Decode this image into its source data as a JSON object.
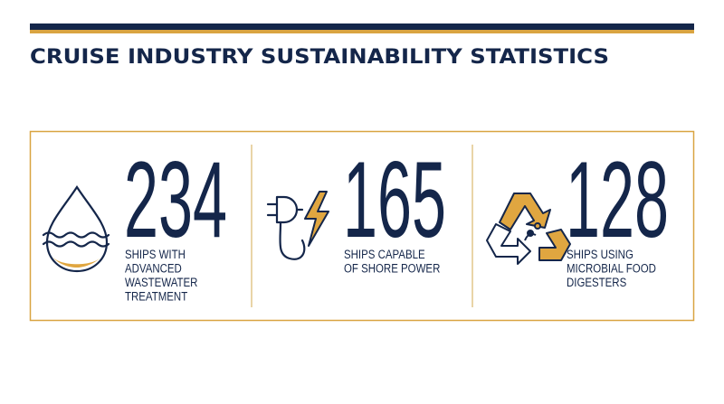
{
  "header": {
    "title": "CRUISE INDUSTRY SUSTAINABILITY STATISTICS"
  },
  "stats": [
    {
      "number": "234",
      "label_lines": [
        "SHIPS WITH",
        "ADVANCED",
        "WASTEWATER",
        "TREATMENT"
      ]
    },
    {
      "number": "165",
      "label_lines": [
        "SHIPS CAPABLE",
        "OF SHORE POWER"
      ]
    },
    {
      "number": "128",
      "label_lines": [
        "SHIPS USING",
        "MICROBIAL FOOD",
        "DIGESTERS"
      ]
    }
  ]
}
